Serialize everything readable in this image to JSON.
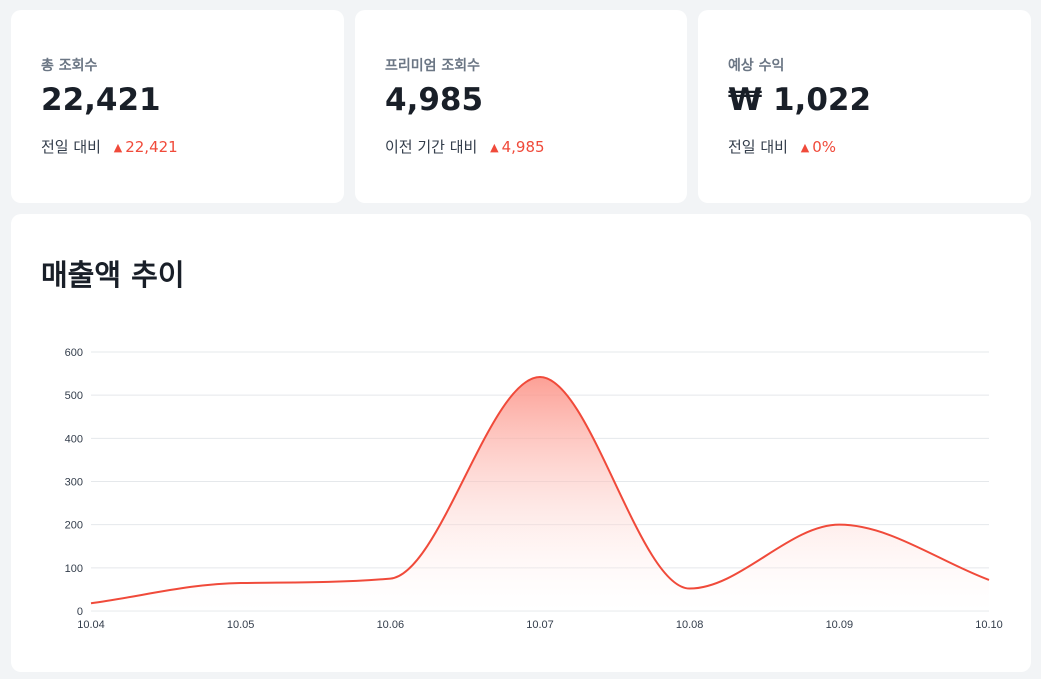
{
  "stats": [
    {
      "label": "총 조회수",
      "value": "22,421",
      "compare_label": "전일 대비",
      "delta_icon": "triangle-up-icon",
      "delta": "22,421"
    },
    {
      "label": "프리미엄 조회수",
      "value": "4,985",
      "compare_label": "이전 기간 대비",
      "delta_icon": "triangle-up-icon",
      "delta": "4,985"
    },
    {
      "label": "예상 수익",
      "value": "₩ 1,022",
      "compare_label": "전일 대비",
      "delta_icon": "triangle-up-icon",
      "delta": "0%"
    }
  ],
  "colors": {
    "accent": "#f04a3a",
    "line": "#f04a3a",
    "fill_top": "#fc8f83",
    "grid": "#e5e8eb"
  },
  "chart_data": {
    "type": "area",
    "title": "매출액 추이",
    "x": [
      "10.04",
      "10.05",
      "10.06",
      "10.07",
      "10.08",
      "10.09",
      "10.10"
    ],
    "series": [
      {
        "values": [
          18,
          65,
          75,
          542,
          52,
          200,
          72
        ]
      }
    ],
    "ylim": [
      0,
      600
    ],
    "yticks": [
      "0",
      "100",
      "200",
      "300",
      "400",
      "500",
      "600"
    ],
    "grid": true,
    "smooth": true
  }
}
